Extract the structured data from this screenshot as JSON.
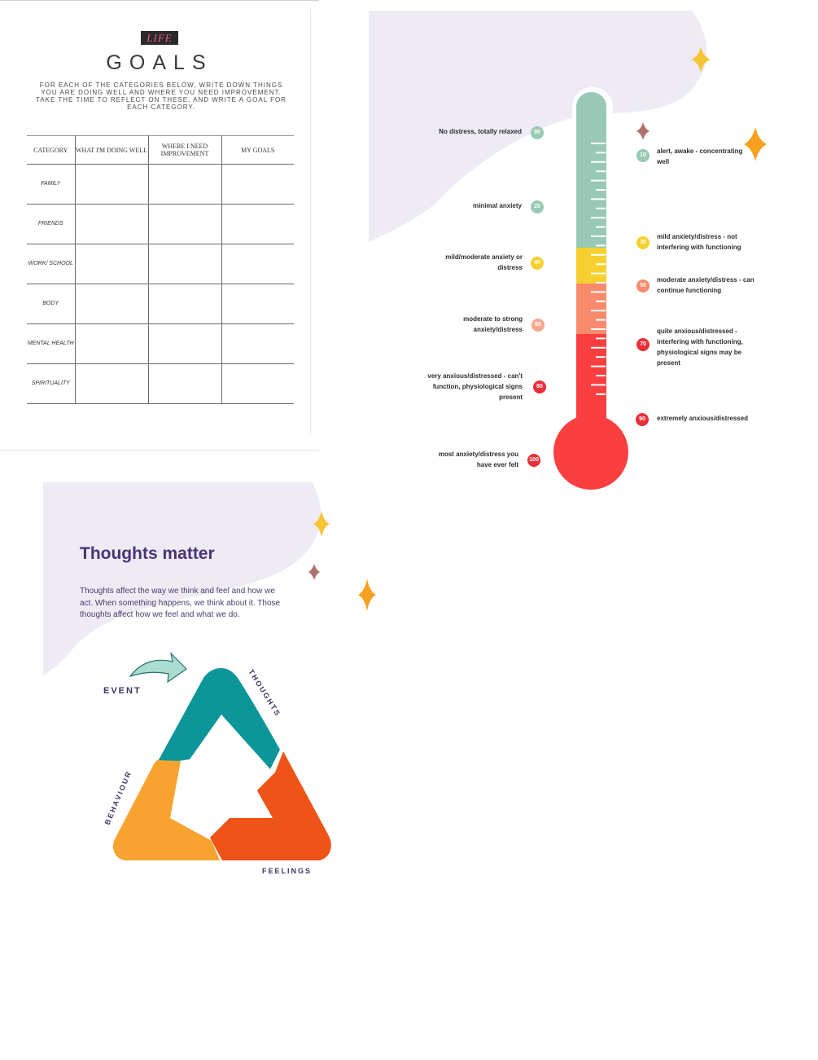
{
  "life_goals": {
    "badge": "LIFE",
    "title": "GOALS",
    "instructions": "FOR EACH OF THE CATEGORIES BELOW, WRITE DOWN THINGS YOU ARE DOING WELL AND WHERE YOU NEED IMPROVEMENT. TAKE THE TIME TO REFLECT ON THESE, AND WRITE A GOAL FOR EACH CATEGORY.",
    "columns": [
      "CATEGORY",
      "WHAT I'M DOING WELL",
      "WHERE I NEED IMPROVEMENT",
      "MY GOALS"
    ],
    "rows": [
      "FAMILY",
      "FRIENDS",
      "WORK/ SCHOOL",
      "BODY",
      "MENTAL HEALTH",
      "SPIRITUALITY"
    ]
  },
  "thermometer": {
    "colors": {
      "teal": "#97c9b5",
      "yellow": "#f6d02f",
      "salmon": "#f98a6c",
      "red": "#fb3f40"
    },
    "levels": [
      {
        "value": "00",
        "label": "No distress, totally relaxed"
      },
      {
        "value": "10",
        "label": "alert, awake - concentrating well"
      },
      {
        "value": "20",
        "label": "minimal anxiety"
      },
      {
        "value": "30",
        "label": "mild anxiety/distress - not interfering with functioning"
      },
      {
        "value": "40",
        "label": "mild/moderate anxiety or distress"
      },
      {
        "value": "50",
        "label": "moderate anxiety/distress - can continue functioning"
      },
      {
        "value": "60",
        "label": "moderate to strong anxiety/distress"
      },
      {
        "value": "70",
        "label": "quite anxious/distressed - interfering with functioning, physiological signs may be present"
      },
      {
        "value": "80",
        "label": "very anxious/distressed - can't function, physiological signs present"
      },
      {
        "value": "90",
        "label": "extremely anxious/distressed"
      },
      {
        "value": "100",
        "label": "most anxiety/distress you have ever felt"
      }
    ]
  },
  "thoughts": {
    "title": "Thoughts matter",
    "body": "Thoughts affect the way we think and feel and how we act. When something happens, we think about it. Those thoughts affect how we feel and what we do.",
    "labels": {
      "event": "EVENT",
      "thoughts": "THOUGHTS",
      "feelings": "FEELINGS",
      "behaviour": "BEHAVIOUR"
    },
    "colors": {
      "thoughts": "#0c969a",
      "feelings": "#ee5318",
      "behaviour": "#f8a330",
      "arrow": "#a8ddd0",
      "title": "#4a3475"
    }
  }
}
